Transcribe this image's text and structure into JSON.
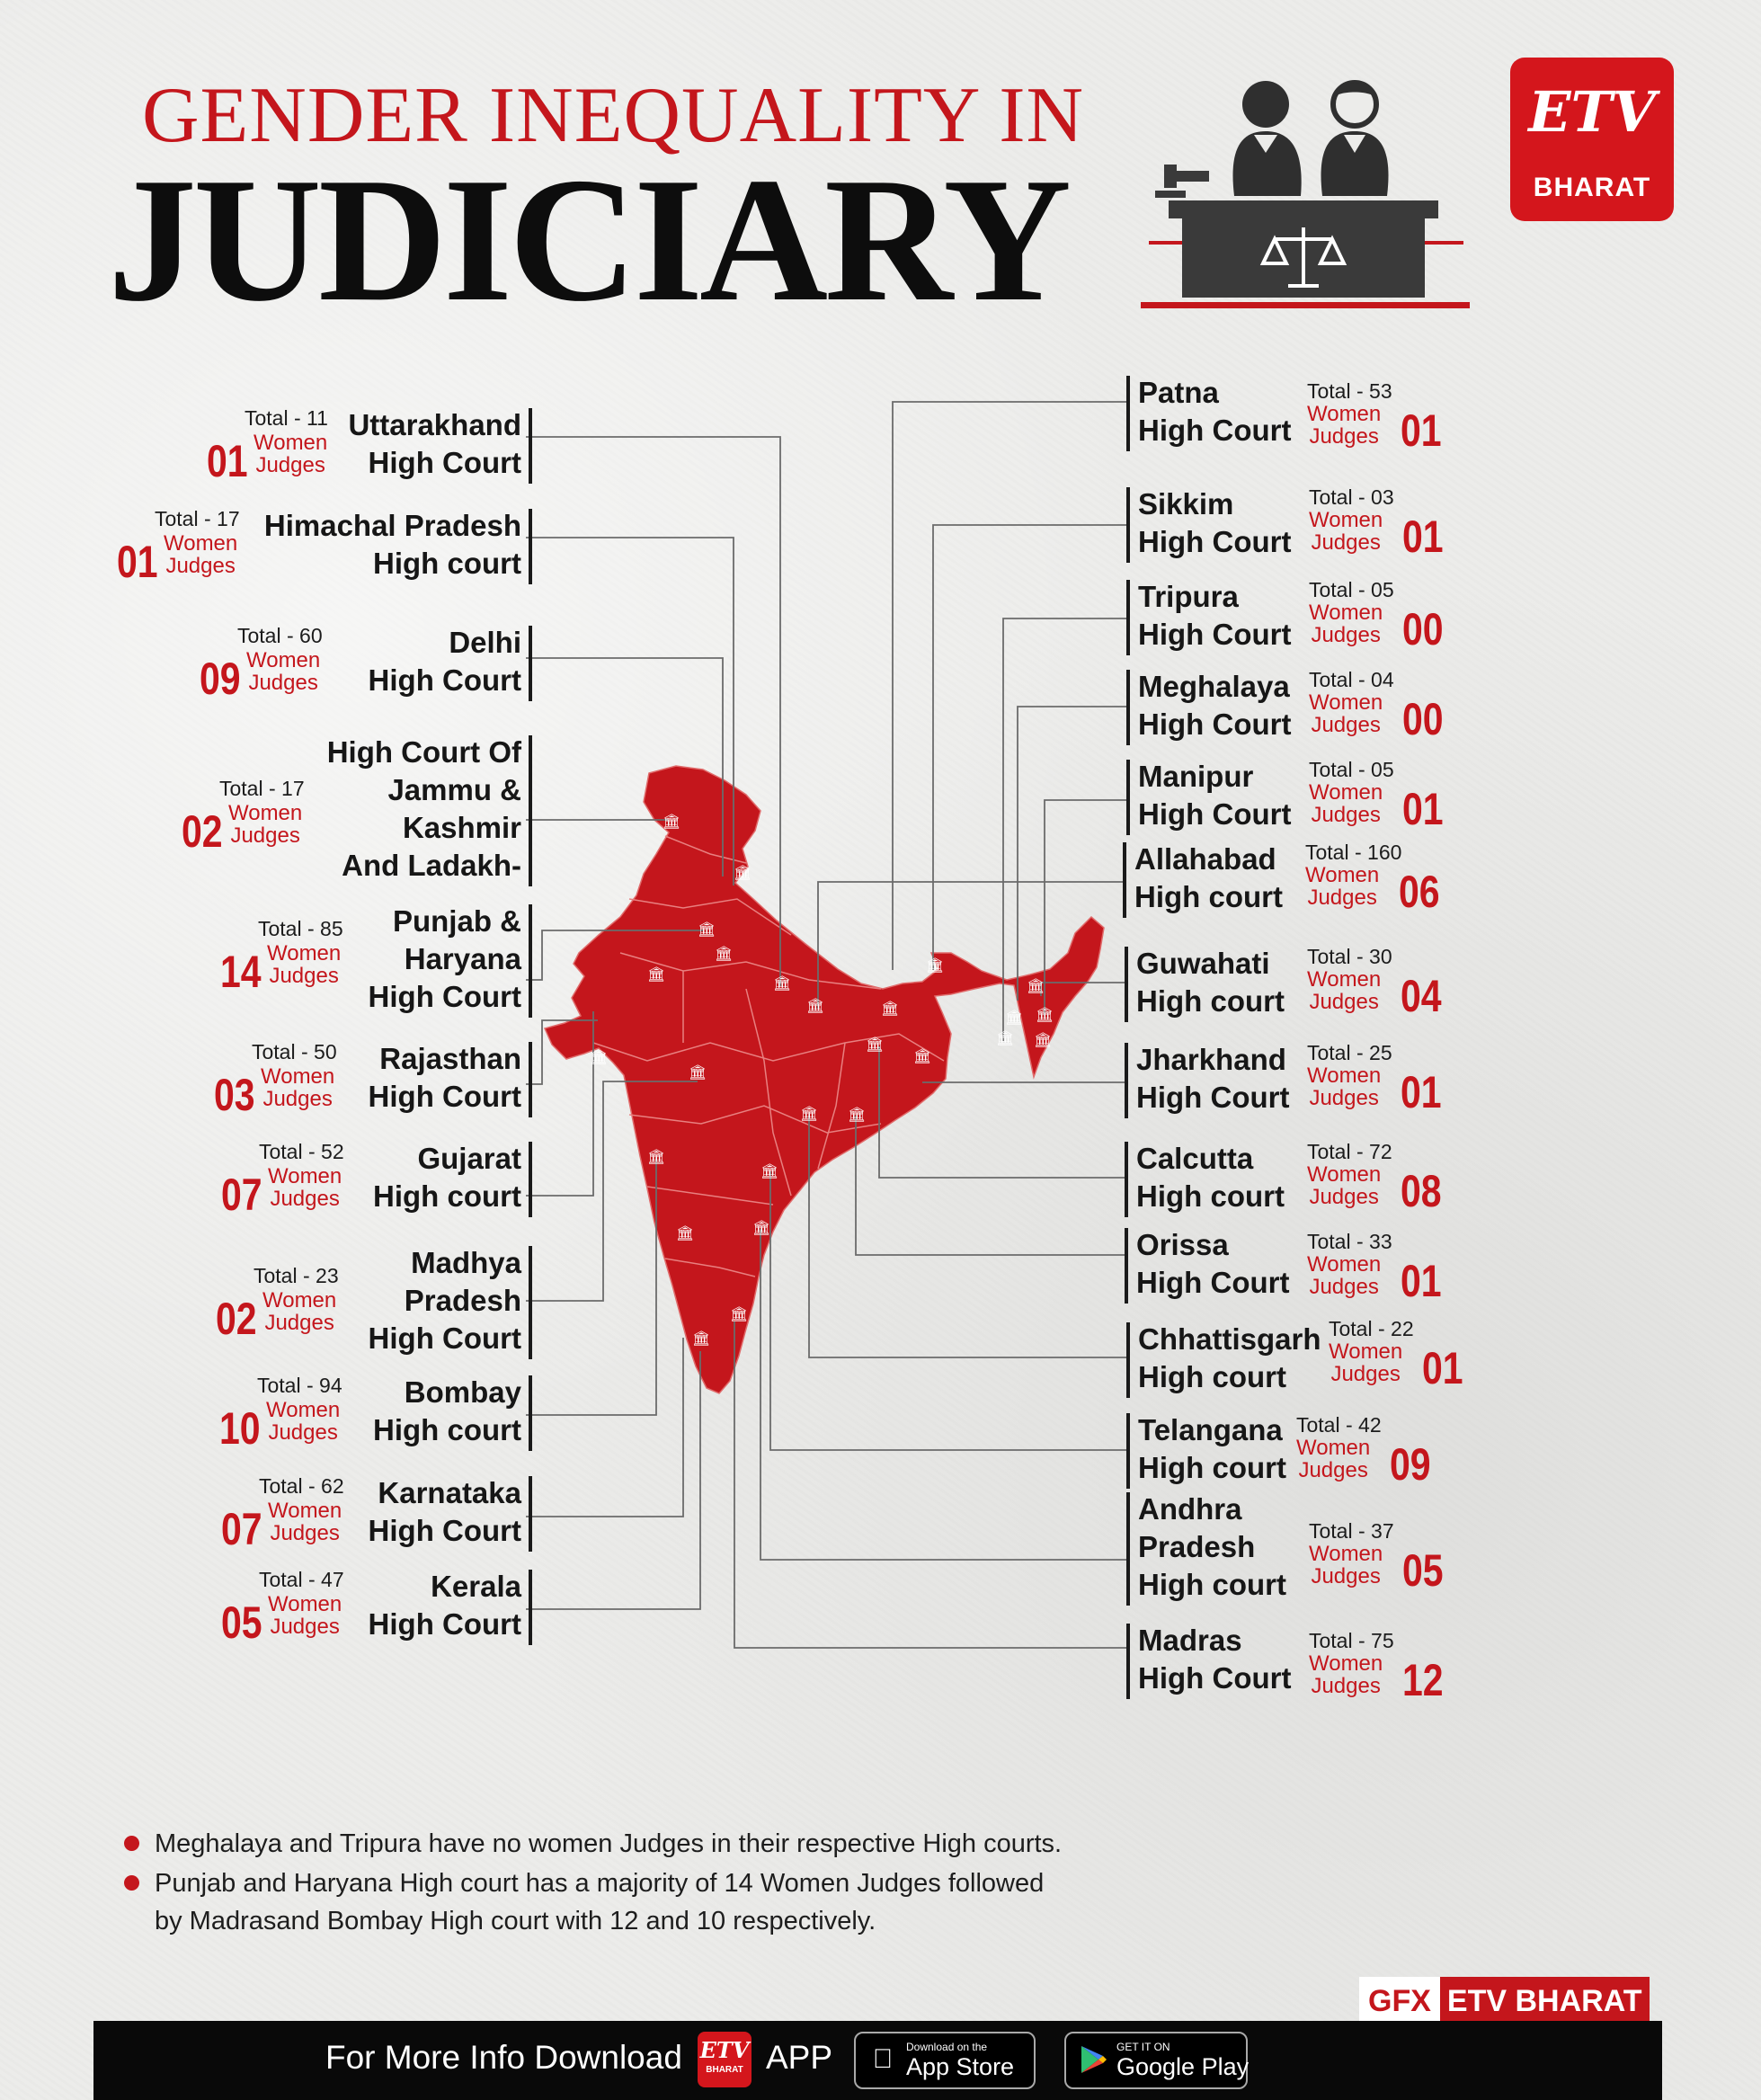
{
  "header": {
    "title_line1": "GENDER INEQUALITY IN",
    "title_line2": "JUDICIARY"
  },
  "logo": {
    "mark": "ETV",
    "name": "BHARAT"
  },
  "colors": {
    "accent": "#c4161c",
    "map": "#c4161c",
    "text": "#161616",
    "background": "#ececea"
  },
  "icons": {
    "court": "courthouse-icon",
    "judges": "judges-at-bench-icon",
    "scales": "scales-of-justice-icon"
  },
  "women_label": "Women\nJudges",
  "courts_left": [
    {
      "name": "Uttarakhand\nHigh Court",
      "total": "Total - 11",
      "women": "01"
    },
    {
      "name": "Himachal Pradesh\nHigh court",
      "total": "Total - 17",
      "women": "01"
    },
    {
      "name": "Delhi\nHigh Court",
      "total": "Total - 60",
      "women": "09"
    },
    {
      "name": "High Court Of\nJammu &\nKashmir\nAnd Ladakh-",
      "total": "Total - 17",
      "women": "02"
    },
    {
      "name": "Punjab &\nHaryana\nHigh Court",
      "total": "Total - 85",
      "women": "14"
    },
    {
      "name": "Rajasthan\nHigh Court",
      "total": "Total - 50",
      "women": "03"
    },
    {
      "name": "Gujarat\nHigh court",
      "total": "Total - 52",
      "women": "07"
    },
    {
      "name": "Madhya\nPradesh\nHigh Court",
      "total": "Total - 23",
      "women": "02"
    },
    {
      "name": "Bombay\nHigh court",
      "total": "Total - 94",
      "women": "10"
    },
    {
      "name": "Karnataka\nHigh Court",
      "total": "Total - 62",
      "women": "07"
    },
    {
      "name": "Kerala\nHigh Court",
      "total": "Total - 47",
      "women": "05"
    }
  ],
  "courts_right": [
    {
      "name": "Patna\nHigh Court",
      "total": "Total - 53",
      "women": "01"
    },
    {
      "name": "Sikkim\nHigh Court",
      "total": "Total - 03",
      "women": "01"
    },
    {
      "name": "Tripura\nHigh Court",
      "total": "Total - 05",
      "women": "00"
    },
    {
      "name": "Meghalaya\nHigh Court",
      "total": "Total - 04",
      "women": "00"
    },
    {
      "name": "Manipur\nHigh Court",
      "total": "Total - 05",
      "women": "01"
    },
    {
      "name": "Allahabad\nHigh court",
      "total": "Total - 160",
      "women": "06"
    },
    {
      "name": "Guwahati\nHigh court",
      "total": "Total - 30",
      "women": "04"
    },
    {
      "name": "Jharkhand\nHigh Court",
      "total": "Total - 25",
      "women": "01"
    },
    {
      "name": "Calcutta\nHigh court",
      "total": "Total - 72",
      "women": "08"
    },
    {
      "name": "Orissa\nHigh Court",
      "total": "Total - 33",
      "women": "01"
    },
    {
      "name": "Chhattisgarh\nHigh court",
      "total": "Total - 22",
      "women": "01"
    },
    {
      "name": "Telangana\nHigh court",
      "total": "Total - 42",
      "women": "09"
    },
    {
      "name": "Andhra\nPradesh\nHigh court",
      "total": "Total - 37",
      "women": "05"
    },
    {
      "name": "Madras\nHigh Court",
      "total": "Total - 75",
      "women": "12"
    }
  ],
  "notes": [
    "Meghalaya and Tripura have no women Judges in their respective High courts.",
    "Punjab and Haryana High court has a majority of 14 Women Judges followed\nby Madrasand Bombay High court with 12 and 10 respectively."
  ],
  "credit": {
    "gfx": "GFX",
    "brand": "ETV BHARAT"
  },
  "footer": {
    "download_text": "For More Info Download",
    "mini_logo_mark": "ETV",
    "mini_logo_name": "BHARAT",
    "app_text": "APP",
    "app_store_small": "Download on the",
    "app_store_big": "App Store",
    "play_store_small": "GET IT ON",
    "play_store_big": "Google Play"
  }
}
